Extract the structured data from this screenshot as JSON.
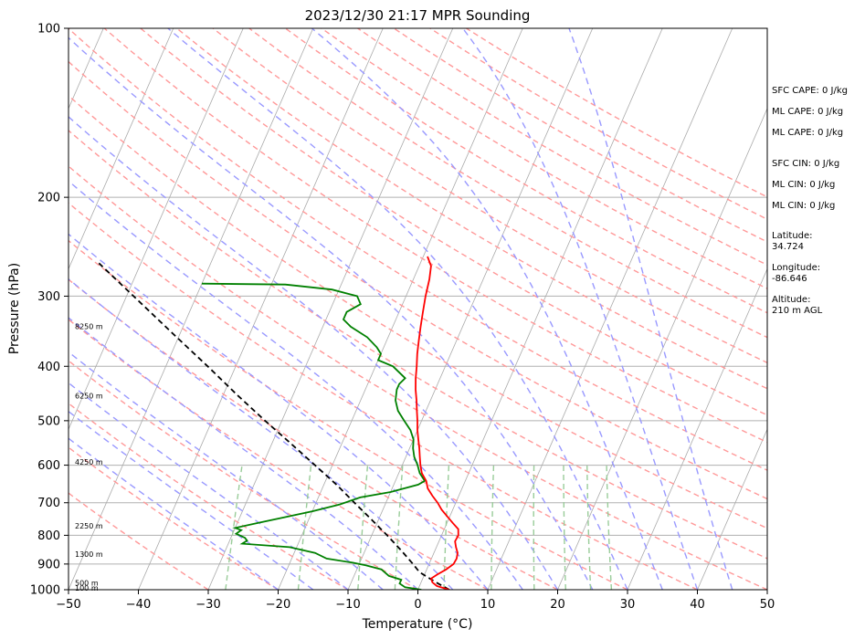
{
  "chart_data": {
    "type": "skew-t log-p sounding",
    "title": "2023/12/30 21:17 MPR Sounding",
    "xlabel": "Temperature (°C)",
    "ylabel": "Pressure (hPa)",
    "xlim": [
      -50,
      50
    ],
    "ylim": [
      1000,
      100
    ],
    "y_scale": "log",
    "x_ticks": [
      -50,
      -40,
      -30,
      -20,
      -10,
      0,
      10,
      20,
      30,
      40,
      50
    ],
    "y_ticks": [
      1000,
      900,
      800,
      700,
      600,
      500,
      400,
      300,
      200,
      100
    ],
    "grid": true,
    "temperature_profile": {
      "color": "#ff0000",
      "points": [
        [
          1000,
          4.5
        ],
        [
          985,
          2.5
        ],
        [
          970,
          1.6
        ],
        [
          955,
          1.2
        ],
        [
          940,
          1.8
        ],
        [
          920,
          2.8
        ],
        [
          900,
          3.5
        ],
        [
          880,
          3.6
        ],
        [
          860,
          3.4
        ],
        [
          840,
          2.8
        ],
        [
          820,
          2.3
        ],
        [
          800,
          2.4
        ],
        [
          780,
          2.0
        ],
        [
          760,
          0.8
        ],
        [
          740,
          -0.4
        ],
        [
          720,
          -1.6
        ],
        [
          700,
          -2.6
        ],
        [
          680,
          -3.8
        ],
        [
          660,
          -4.9
        ],
        [
          640,
          -5.6
        ],
        [
          620,
          -6.7
        ],
        [
          600,
          -7.4
        ],
        [
          580,
          -8.0
        ],
        [
          560,
          -8.6
        ],
        [
          540,
          -9.3
        ],
        [
          520,
          -10.0
        ],
        [
          500,
          -10.6
        ],
        [
          480,
          -11.3
        ],
        [
          460,
          -12.0
        ],
        [
          440,
          -12.8
        ],
        [
          420,
          -13.5
        ],
        [
          400,
          -14.1
        ],
        [
          380,
          -14.8
        ],
        [
          360,
          -15.4
        ],
        [
          340,
          -16.0
        ],
        [
          320,
          -16.6
        ],
        [
          300,
          -17.2
        ],
        [
          280,
          -17.7
        ],
        [
          265,
          -18.3
        ],
        [
          255,
          -19.4
        ]
      ]
    },
    "dewpoint_profile": {
      "color": "#008000",
      "points": [
        [
          1000,
          0.5
        ],
        [
          990,
          -2.0
        ],
        [
          975,
          -3.0
        ],
        [
          960,
          -3.0
        ],
        [
          945,
          -5.0
        ],
        [
          920,
          -6.5
        ],
        [
          905,
          -9.0
        ],
        [
          895,
          -11.0
        ],
        [
          880,
          -15.0
        ],
        [
          860,
          -17.0
        ],
        [
          840,
          -21.0
        ],
        [
          828,
          -28.0
        ],
        [
          818,
          -27.5
        ],
        [
          808,
          -28.0
        ],
        [
          795,
          -29.5
        ],
        [
          783,
          -29.0
        ],
        [
          776,
          -30.0
        ],
        [
          760,
          -27.0
        ],
        [
          745,
          -24.0
        ],
        [
          725,
          -20.0
        ],
        [
          705,
          -16.5
        ],
        [
          685,
          -14.0
        ],
        [
          670,
          -10.0
        ],
        [
          650,
          -6.5
        ],
        [
          640,
          -5.8
        ],
        [
          620,
          -7.0
        ],
        [
          600,
          -7.8
        ],
        [
          580,
          -8.8
        ],
        [
          560,
          -9.5
        ],
        [
          540,
          -10.0
        ],
        [
          520,
          -11.0
        ],
        [
          500,
          -12.5
        ],
        [
          480,
          -14.0
        ],
        [
          460,
          -15.0
        ],
        [
          440,
          -15.5
        ],
        [
          430,
          -15.5
        ],
        [
          420,
          -15.0
        ],
        [
          400,
          -17.5
        ],
        [
          390,
          -20.0
        ],
        [
          380,
          -20.0
        ],
        [
          370,
          -21.0
        ],
        [
          355,
          -23.0
        ],
        [
          340,
          -26.0
        ],
        [
          330,
          -27.5
        ],
        [
          320,
          -27.5
        ],
        [
          310,
          -26.0
        ],
        [
          300,
          -27.0
        ],
        [
          292,
          -31.0
        ],
        [
          286,
          -38.0
        ],
        [
          285,
          -50.0
        ]
      ]
    },
    "parcel_profile": {
      "color": "#000000",
      "style": "dashed",
      "points": [
        [
          1000,
          4.5
        ],
        [
          975,
          2.5
        ],
        [
          950,
          0.6
        ],
        [
          930,
          -0.9
        ],
        [
          900,
          -2.3
        ],
        [
          850,
          -4.9
        ],
        [
          800,
          -7.8
        ],
        [
          750,
          -11.0
        ],
        [
          700,
          -14.5
        ],
        [
          650,
          -18.2
        ],
        [
          600,
          -22.5
        ],
        [
          550,
          -27.2
        ],
        [
          500,
          -32.4
        ],
        [
          450,
          -38.0
        ],
        [
          400,
          -44.0
        ],
        [
          350,
          -51.0
        ],
        [
          300,
          -59.0
        ],
        [
          262,
          -66.0
        ]
      ]
    },
    "height_labels": [
      {
        "pressure": 1000,
        "text": "100 m"
      },
      {
        "pressure": 980,
        "text": "500 m"
      },
      {
        "pressure": 870,
        "text": "1300 m"
      },
      {
        "pressure": 775,
        "text": "2250 m"
      },
      {
        "pressure": 596,
        "text": "4250 m"
      },
      {
        "pressure": 455,
        "text": "6250 m"
      },
      {
        "pressure": 342,
        "text": "8250 m"
      }
    ],
    "reference_lines": {
      "isotherms_color": "#aaaaaa",
      "dry_adiabats_color": "#ff9999",
      "moist_adiabats_color": "#9999ff",
      "mixing_ratio_color": "#99cc99"
    }
  },
  "side_panel": {
    "sfc_cape": "SFC CAPE: 0 J/kg",
    "ml_cape_1": "ML CAPE: 0 J/kg",
    "ml_cape_2": "ML CAPE: 0 J/kg",
    "sfc_cin": "SFC CIN: 0 J/kg",
    "ml_cin_1": "ML CIN: 0 J/kg",
    "ml_cin_2": "ML CIN: 0 J/kg",
    "latitude_label": "Latitude:",
    "latitude_value": "34.724",
    "longitude_label": "Longitude:",
    "longitude_value": "-86.646",
    "altitude_label": "Altitude:",
    "altitude_value": "210 m AGL"
  }
}
